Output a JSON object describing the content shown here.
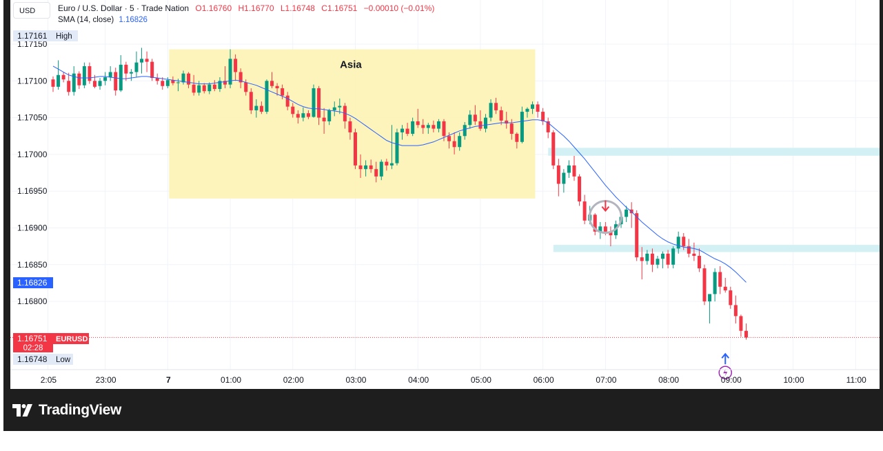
{
  "currency_button": "USD",
  "legend": {
    "title": "Euro / U.S. Dollar · 5 · Trade Nation",
    "o": "O1.16760",
    "h": "H1.16770",
    "l": "L1.16748",
    "c": "C1.16751",
    "change": "−0.00010 (−0.01%)",
    "sma_label": "SMA (14, close)",
    "sma_value": "1.16826"
  },
  "brand": "TradingView",
  "colors": {
    "up": "#089981",
    "down": "#f23645",
    "sma": "#2962ff",
    "session": "#fdf3b4",
    "zone": "#d3f1f4",
    "alert": "#9c27b0"
  },
  "chart_data": {
    "type": "candlestick",
    "symbol": "EURUSD",
    "timeframe": "5",
    "y_range": [
      1.16735,
      1.17165
    ],
    "y_ticks": [
      1.1715,
      1.171,
      1.1705,
      1.17,
      1.1695,
      1.169,
      1.1685,
      1.168
    ],
    "y_tick_labels": [
      "1.17150",
      "1.17100",
      "1.17050",
      "1.17000",
      "1.16950",
      "1.16900",
      "1.16850",
      "1.16800"
    ],
    "x_tick_labels": [
      {
        "label": "2:05",
        "bar": -1
      },
      {
        "label": "23:00",
        "bar": 10
      },
      {
        "label": "7",
        "bar": 22
      },
      {
        "label": "01:00",
        "bar": 34
      },
      {
        "label": "02:00",
        "bar": 46
      },
      {
        "label": "03:00",
        "bar": 58
      },
      {
        "label": "04:00",
        "bar": 70
      },
      {
        "label": "05:00",
        "bar": 82
      },
      {
        "label": "06:00",
        "bar": 94
      },
      {
        "label": "07:00",
        "bar": 106
      },
      {
        "label": "08:00",
        "bar": 118
      },
      {
        "label": "09:00",
        "bar": 130
      },
      {
        "label": "10:00",
        "bar": 142
      },
      {
        "label": "11:00",
        "bar": 154
      }
    ],
    "bar_count_visible": 158,
    "badges": {
      "high": {
        "value": "1.17161",
        "label": "High"
      },
      "sma": {
        "value": "1.16826"
      },
      "last": {
        "value": "1.16751",
        "symbol": "EURUSD",
        "countdown": "02:28"
      },
      "low": {
        "value": "1.16748",
        "label": "Low"
      }
    },
    "session": {
      "label": "Asia",
      "bar_start": 22,
      "bar_end": 92,
      "high": 1.17143,
      "low": 1.1694
    },
    "zones": [
      {
        "bar_start": 95,
        "bar_end": 160,
        "low": 1.17001,
        "high": 1.17008
      },
      {
        "bar_start": 96,
        "bar_end": 160,
        "low": 1.1687,
        "high": 1.16876
      }
    ],
    "candles": [
      [
        1.17102,
        1.17106,
        1.17085,
        1.17092
      ],
      [
        1.17092,
        1.17128,
        1.17088,
        1.17108
      ],
      [
        1.17108,
        1.17112,
        1.17098,
        1.17102
      ],
      [
        1.171,
        1.17111,
        1.1708,
        1.17085
      ],
      [
        1.17085,
        1.1712,
        1.1708,
        1.1711
      ],
      [
        1.1711,
        1.17113,
        1.17089,
        1.17094
      ],
      [
        1.17094,
        1.17125,
        1.1709,
        1.1712
      ],
      [
        1.1712,
        1.17125,
        1.17096,
        1.171
      ],
      [
        1.171,
        1.17108,
        1.1709,
        1.17092
      ],
      [
        1.17093,
        1.17104,
        1.17088,
        1.171
      ],
      [
        1.171,
        1.17112,
        1.17094,
        1.17105
      ],
      [
        1.17105,
        1.1712,
        1.171,
        1.17112
      ],
      [
        1.17112,
        1.17118,
        1.1708,
        1.17087
      ],
      [
        1.17087,
        1.17135,
        1.17085,
        1.17122
      ],
      [
        1.17122,
        1.17126,
        1.171,
        1.1711
      ],
      [
        1.1711,
        1.17116,
        1.171,
        1.17112
      ],
      [
        1.17112,
        1.1714,
        1.17105,
        1.17125
      ],
      [
        1.17125,
        1.17145,
        1.1711,
        1.1713
      ],
      [
        1.1713,
        1.1714,
        1.17112,
        1.17126
      ],
      [
        1.17126,
        1.1713,
        1.171,
        1.17104
      ],
      [
        1.17104,
        1.1711,
        1.17095,
        1.171
      ],
      [
        1.171,
        1.17105,
        1.17088,
        1.17093
      ],
      [
        1.17093,
        1.17105,
        1.1709,
        1.17101
      ],
      [
        1.17101,
        1.17106,
        1.17094,
        1.17097
      ],
      [
        1.17097,
        1.17103,
        1.17086,
        1.17098
      ],
      [
        1.17098,
        1.17114,
        1.17095,
        1.1711
      ],
      [
        1.1711,
        1.17112,
        1.1709,
        1.17095
      ],
      [
        1.17095,
        1.17108,
        1.1708,
        1.17084
      ],
      [
        1.17084,
        1.171,
        1.1708,
        1.17094
      ],
      [
        1.17094,
        1.17097,
        1.17083,
        1.17086
      ],
      [
        1.17086,
        1.17098,
        1.17082,
        1.17095
      ],
      [
        1.17095,
        1.17101,
        1.17086,
        1.17089
      ],
      [
        1.17089,
        1.17105,
        1.17085,
        1.171
      ],
      [
        1.171,
        1.1712,
        1.1709,
        1.17095
      ],
      [
        1.17095,
        1.17143,
        1.1709,
        1.1713
      ],
      [
        1.1713,
        1.17136,
        1.171,
        1.17112
      ],
      [
        1.17112,
        1.17117,
        1.1709,
        1.17098
      ],
      [
        1.17098,
        1.17102,
        1.1708,
        1.17085
      ],
      [
        1.17085,
        1.1709,
        1.17055,
        1.1706
      ],
      [
        1.1706,
        1.17075,
        1.1705,
        1.17066
      ],
      [
        1.17066,
        1.17072,
        1.17055,
        1.17058
      ],
      [
        1.17058,
        1.17102,
        1.17055,
        1.171
      ],
      [
        1.171,
        1.17112,
        1.1709,
        1.17093
      ],
      [
        1.17093,
        1.17097,
        1.1708,
        1.1709
      ],
      [
        1.1709,
        1.17095,
        1.17075,
        1.1708
      ],
      [
        1.1708,
        1.17085,
        1.1706,
        1.17065
      ],
      [
        1.17065,
        1.1707,
        1.1705,
        1.17055
      ],
      [
        1.17055,
        1.1706,
        1.17042,
        1.1705
      ],
      [
        1.1705,
        1.17064,
        1.17045,
        1.17056
      ],
      [
        1.17056,
        1.1706,
        1.17048,
        1.17051
      ],
      [
        1.17051,
        1.17095,
        1.1705,
        1.1709
      ],
      [
        1.1709,
        1.17093,
        1.1704,
        1.1705
      ],
      [
        1.1705,
        1.17063,
        1.17028,
        1.17045
      ],
      [
        1.17045,
        1.17062,
        1.1704,
        1.1706
      ],
      [
        1.1706,
        1.17072,
        1.17052,
        1.17064
      ],
      [
        1.17064,
        1.17076,
        1.17055,
        1.17066
      ],
      [
        1.17066,
        1.1707,
        1.17035,
        1.17045
      ],
      [
        1.17045,
        1.1705,
        1.1702,
        1.1703
      ],
      [
        1.1703,
        1.17035,
        1.1698,
        1.16985
      ],
      [
        1.16985,
        1.17,
        1.16968,
        1.1698
      ],
      [
        1.1698,
        1.16992,
        1.1697,
        1.16985
      ],
      [
        1.16985,
        1.16993,
        1.16975,
        1.1698
      ],
      [
        1.1698,
        1.1699,
        1.16962,
        1.1697
      ],
      [
        1.1697,
        1.16993,
        1.16965,
        1.1699
      ],
      [
        1.1699,
        1.16994,
        1.16978,
        1.16985
      ],
      [
        1.16985,
        1.1704,
        1.1698,
        1.16988
      ],
      [
        1.16988,
        1.17035,
        1.16985,
        1.1703
      ],
      [
        1.1703,
        1.1704,
        1.1702,
        1.17035
      ],
      [
        1.17035,
        1.17043,
        1.17025,
        1.17028
      ],
      [
        1.17028,
        1.1705,
        1.17025,
        1.17045
      ],
      [
        1.17045,
        1.17062,
        1.17036,
        1.1704
      ],
      [
        1.1704,
        1.17048,
        1.17028,
        1.17036
      ],
      [
        1.17036,
        1.17043,
        1.17028,
        1.1704
      ],
      [
        1.1704,
        1.17046,
        1.1703,
        1.17035
      ],
      [
        1.17035,
        1.17048,
        1.1703,
        1.17045
      ],
      [
        1.17045,
        1.17048,
        1.17018,
        1.17025
      ],
      [
        1.17025,
        1.1703,
        1.17008,
        1.17018
      ],
      [
        1.17018,
        1.1703,
        1.17,
        1.1701
      ],
      [
        1.1701,
        1.1703,
        1.17005,
        1.17025
      ],
      [
        1.17025,
        1.17044,
        1.1702,
        1.1704
      ],
      [
        1.1704,
        1.1706,
        1.17035,
        1.17054
      ],
      [
        1.17054,
        1.17067,
        1.1704,
        1.17045
      ],
      [
        1.17045,
        1.1706,
        1.17032,
        1.17035
      ],
      [
        1.17035,
        1.17055,
        1.1703,
        1.1705
      ],
      [
        1.1705,
        1.17075,
        1.17045,
        1.1707
      ],
      [
        1.1707,
        1.17077,
        1.17055,
        1.1706
      ],
      [
        1.1706,
        1.17065,
        1.1704,
        1.17046
      ],
      [
        1.17046,
        1.17058,
        1.17035,
        1.17042
      ],
      [
        1.17042,
        1.17048,
        1.1702,
        1.17028
      ],
      [
        1.17028,
        1.1703,
        1.17008,
        1.17017
      ],
      [
        1.17017,
        1.17065,
        1.17015,
        1.17058
      ],
      [
        1.17058,
        1.17064,
        1.1705,
        1.17062
      ],
      [
        1.17062,
        1.17072,
        1.17055,
        1.17068
      ],
      [
        1.17068,
        1.17072,
        1.1705,
        1.17058
      ],
      [
        1.17058,
        1.17063,
        1.1704,
        1.17045
      ],
      [
        1.17045,
        1.1705,
        1.17022,
        1.1703
      ],
      [
        1.1703,
        1.17033,
        1.1698,
        1.16985
      ],
      [
        1.16985,
        1.16994,
        1.16943,
        1.1696
      ],
      [
        1.1696,
        1.1698,
        1.16948,
        1.16975
      ],
      [
        1.16975,
        1.16992,
        1.16968,
        1.16985
      ],
      [
        1.16985,
        1.16998,
        1.16964,
        1.1697
      ],
      [
        1.1697,
        1.16973,
        1.1693,
        1.16936
      ],
      [
        1.16936,
        1.16945,
        1.16905,
        1.1691
      ],
      [
        1.1691,
        1.1693,
        1.16905,
        1.16918
      ],
      [
        1.16918,
        1.1692,
        1.1689,
        1.16895
      ],
      [
        1.16895,
        1.16908,
        1.16885,
        1.16902
      ],
      [
        1.16902,
        1.16908,
        1.1689,
        1.16895
      ],
      [
        1.16895,
        1.16902,
        1.16875,
        1.1689
      ],
      [
        1.1689,
        1.1691,
        1.16885,
        1.16905
      ],
      [
        1.16905,
        1.1692,
        1.169,
        1.16915
      ],
      [
        1.16915,
        1.1693,
        1.16908,
        1.16925
      ],
      [
        1.16925,
        1.16935,
        1.169,
        1.1692
      ],
      [
        1.1692,
        1.16924,
        1.16855,
        1.1686
      ],
      [
        1.1686,
        1.16874,
        1.1683,
        1.16855
      ],
      [
        1.16855,
        1.1687,
        1.1685,
        1.16865
      ],
      [
        1.16865,
        1.16872,
        1.1684,
        1.1685
      ],
      [
        1.1685,
        1.16862,
        1.16845,
        1.16858
      ],
      [
        1.16858,
        1.16868,
        1.16845,
        1.16865
      ],
      [
        1.16865,
        1.1687,
        1.16845,
        1.1685
      ],
      [
        1.1685,
        1.16875,
        1.16845,
        1.16872
      ],
      [
        1.16872,
        1.16895,
        1.16865,
        1.16888
      ],
      [
        1.16888,
        1.16893,
        1.1687,
        1.16875
      ],
      [
        1.16875,
        1.16885,
        1.1686,
        1.16865
      ],
      [
        1.16865,
        1.1688,
        1.16855,
        1.16862
      ],
      [
        1.16862,
        1.16872,
        1.1684,
        1.16845
      ],
      [
        1.16845,
        1.1685,
        1.16795,
        1.168
      ],
      [
        1.168,
        1.1681,
        1.1677,
        1.1681
      ],
      [
        1.1681,
        1.16845,
        1.168,
        1.1684
      ],
      [
        1.1684,
        1.16848,
        1.1681,
        1.1682
      ],
      [
        1.1682,
        1.16832,
        1.16812,
        1.16815
      ],
      [
        1.16815,
        1.1682,
        1.1679,
        1.16795
      ],
      [
        1.16795,
        1.16808,
        1.1677,
        1.1678
      ],
      [
        1.1678,
        1.16782,
        1.16752,
        1.1676
      ],
      [
        1.1676,
        1.1677,
        1.16748,
        1.16751
      ]
    ],
    "sma": [
      1.1712,
      1.17116,
      1.17112,
      1.17108,
      1.17106,
      1.17104,
      1.17104,
      1.17104,
      1.17105,
      1.17106,
      1.17106,
      1.17105,
      1.17104,
      1.17103,
      1.17103,
      1.17104,
      1.17105,
      1.17106,
      1.17106,
      1.17105,
      1.17104,
      1.17103,
      1.17102,
      1.17101,
      1.171,
      1.17099,
      1.17098,
      1.17097,
      1.17096,
      1.17096,
      1.17096,
      1.17097,
      1.17098,
      1.17099,
      1.171,
      1.17101,
      1.171,
      1.17098,
      1.17096,
      1.17094,
      1.17091,
      1.17088,
      1.17085,
      1.17082,
      1.17079,
      1.17076,
      1.17072,
      1.17068,
      1.17065,
      1.17063,
      1.17062,
      1.17062,
      1.17061,
      1.1706,
      1.17059,
      1.17058,
      1.17056,
      1.17053,
      1.17049,
      1.17044,
      1.17039,
      1.17034,
      1.17029,
      1.17024,
      1.17019,
      1.17016,
      1.17014,
      1.17012,
      1.17012,
      1.17012,
      1.17012,
      1.17013,
      1.17015,
      1.17017,
      1.1702,
      1.17023,
      1.17026,
      1.17029,
      1.17032,
      1.17034,
      1.17036,
      1.17038,
      1.17039,
      1.1704,
      1.17041,
      1.17042,
      1.17043,
      1.17043,
      1.17043,
      1.17044,
      1.17045,
      1.17046,
      1.17047,
      1.17047,
      1.17046,
      1.17043,
      1.17037,
      1.17031,
      1.17025,
      1.17018,
      1.1701,
      1.17002,
      1.16994,
      1.16985,
      1.16976,
      1.16967,
      1.16958,
      1.1695,
      1.16942,
      1.16935,
      1.16928,
      1.16922,
      1.16915,
      1.16908,
      1.16902,
      1.16896,
      1.1689,
      1.16885,
      1.16881,
      1.16878,
      1.16876,
      1.16874,
      1.16873,
      1.16872,
      1.1687,
      1.16866,
      1.16862,
      1.16858,
      1.16855,
      1.16851,
      1.16846,
      1.1684,
      1.16833,
      1.16826
    ],
    "signals": [
      {
        "type": "sell",
        "bar": 106,
        "price": 1.16928
      },
      {
        "type": "buy",
        "bar": 129,
        "price": 1.16722
      }
    ],
    "circle_marker": {
      "bar": 106,
      "price": 1.16915
    }
  }
}
